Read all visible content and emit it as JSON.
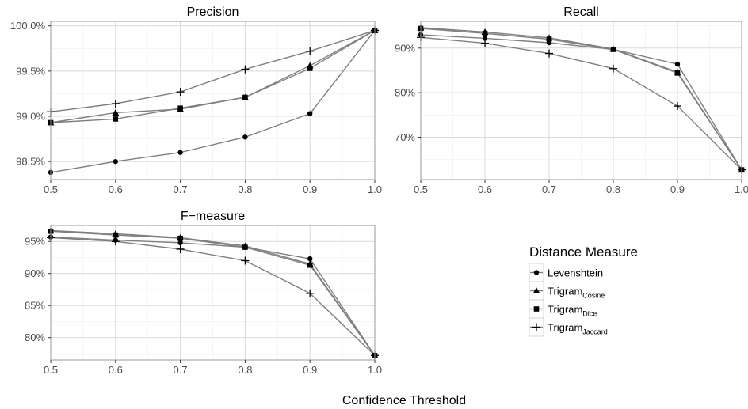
{
  "xlabel": "Confidence Threshold",
  "legend": {
    "title": "Distance Measure",
    "items": [
      {
        "base": "Levenshtein",
        "sub": "",
        "marker": "circle"
      },
      {
        "base": "Trigram",
        "sub": "Cosine",
        "marker": "triangle"
      },
      {
        "base": "Trigram",
        "sub": "Dice",
        "marker": "square"
      },
      {
        "base": "Trigram",
        "sub": "Jaccard",
        "marker": "plus"
      }
    ]
  },
  "colors": {
    "line": "#7f7f7f",
    "marker": "#000000",
    "grid_major": "#d9d9d9",
    "grid_minor": "#efefef",
    "border": "#9a9a9a"
  },
  "chart_data": [
    {
      "type": "line",
      "title": "Precision",
      "x": [
        0.5,
        0.6,
        0.7,
        0.8,
        0.9,
        1.0
      ],
      "x_ticks": [
        "0.5",
        "0.6",
        "0.7",
        "0.8",
        "0.9",
        "1.0"
      ],
      "xlim": [
        0.5,
        1.0
      ],
      "ylim": [
        98.3,
        100.05
      ],
      "y_ticks": [
        98.5,
        99.0,
        99.5,
        100.0
      ],
      "y_tick_labels": [
        "98.5%",
        "99.0%",
        "99.5%",
        "100.0%"
      ],
      "grid": true,
      "series": [
        {
          "name": "Levenshtein",
          "values": [
            98.38,
            98.5,
            98.6,
            98.77,
            99.03,
            99.95
          ]
        },
        {
          "name": "Trigram Cosine",
          "values": [
            98.93,
            99.04,
            99.08,
            99.21,
            99.56,
            99.95
          ]
        },
        {
          "name": "Trigram Dice",
          "values": [
            98.93,
            98.97,
            99.09,
            99.21,
            99.53,
            99.95
          ]
        },
        {
          "name": "Trigram Jaccard",
          "values": [
            99.05,
            99.14,
            99.27,
            99.52,
            99.72,
            99.95
          ]
        }
      ]
    },
    {
      "type": "line",
      "title": "Recall",
      "x": [
        0.5,
        0.6,
        0.7,
        0.8,
        0.9,
        1.0
      ],
      "x_ticks": [
        "0.5",
        "0.6",
        "0.7",
        "0.8",
        "0.9",
        "1.0"
      ],
      "xlim": [
        0.5,
        1.0
      ],
      "ylim": [
        60.5,
        96
      ],
      "y_ticks": [
        70,
        80,
        90
      ],
      "y_tick_labels": [
        "70%",
        "80%",
        "90%"
      ],
      "grid": true,
      "series": [
        {
          "name": "Levenshtein",
          "values": [
            93.0,
            92.2,
            91.2,
            89.7,
            86.4,
            62.7
          ]
        },
        {
          "name": "Trigram Cosine",
          "values": [
            94.6,
            93.6,
            92.3,
            89.8,
            84.6,
            62.7
          ]
        },
        {
          "name": "Trigram Dice",
          "values": [
            94.4,
            93.3,
            92.0,
            89.7,
            84.4,
            62.7
          ]
        },
        {
          "name": "Trigram Jaccard",
          "values": [
            92.4,
            91.1,
            88.8,
            85.4,
            77.0,
            62.7
          ]
        }
      ]
    },
    {
      "type": "line",
      "title": "F−measure",
      "x": [
        0.5,
        0.6,
        0.7,
        0.8,
        0.9,
        1.0
      ],
      "x_ticks": [
        "0.5",
        "0.6",
        "0.7",
        "0.8",
        "0.9",
        "1.0"
      ],
      "xlim": [
        0.5,
        1.0
      ],
      "ylim": [
        76.5,
        97.5
      ],
      "y_ticks": [
        80,
        85,
        90,
        95
      ],
      "y_tick_labels": [
        "80%",
        "85%",
        "90%",
        "95%"
      ],
      "grid": true,
      "series": [
        {
          "name": "Levenshtein",
          "values": [
            95.7,
            95.2,
            94.8,
            94.1,
            92.3,
            77.2
          ]
        },
        {
          "name": "Trigram Cosine",
          "values": [
            96.7,
            96.2,
            95.6,
            94.3,
            91.5,
            77.2
          ]
        },
        {
          "name": "Trigram Dice",
          "values": [
            96.6,
            96.0,
            95.5,
            94.1,
            91.3,
            77.2
          ]
        },
        {
          "name": "Trigram Jaccard",
          "values": [
            95.6,
            95.0,
            93.8,
            92.0,
            86.9,
            77.2
          ]
        }
      ]
    }
  ]
}
